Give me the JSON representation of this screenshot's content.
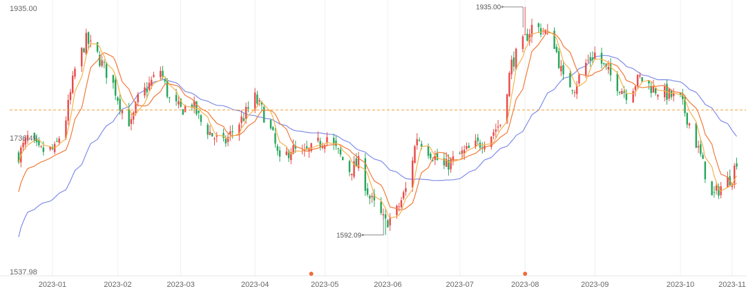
{
  "chart_data": {
    "type": "candlestick",
    "title": "",
    "y_labels": {
      "top": "1935.00",
      "bottom": "1537.98",
      "mid_partial": "1736.49"
    },
    "ylim": [
      1537.98,
      1935.0
    ],
    "xlim": [
      "2022-12-15",
      "2023-11-05"
    ],
    "x_ticks": [
      {
        "date": "2023-01-03",
        "label": "2023-01"
      },
      {
        "date": "2023-02-01",
        "label": "2023-02"
      },
      {
        "date": "2023-03-01",
        "label": "2023-03"
      },
      {
        "date": "2023-04-03",
        "label": "2023-04"
      },
      {
        "date": "2023-05-04",
        "label": "2023-05"
      },
      {
        "date": "2023-06-01",
        "label": "2023-06"
      },
      {
        "date": "2023-07-03",
        "label": "2023-07"
      },
      {
        "date": "2023-08-01",
        "label": "2023-08"
      },
      {
        "date": "2023-09-01",
        "label": "2023-09"
      },
      {
        "date": "2023-10-09",
        "label": "2023-10"
      },
      {
        "date": "2023-11-01",
        "label": "2023-11"
      }
    ],
    "current_price_line": 1780,
    "annotations": [
      {
        "text": "1935.00",
        "date": "2023-08-01",
        "value": 1935.0,
        "side": "left"
      },
      {
        "text": "1592.09",
        "date": "2023-05-31",
        "value": 1592.09,
        "side": "left"
      }
    ],
    "event_markers": [
      {
        "date": "2023-04-28"
      },
      {
        "date": "2023-08-01"
      }
    ],
    "colors": {
      "up": "#e84a4a",
      "down": "#26a65b",
      "ma_short": "#f5b14a",
      "ma_mid": "#f07a3a",
      "ma_long": "#7f8de8",
      "price_line": "#f0a040",
      "marker": "#f26a3a",
      "grid": "#f0f0f0"
    },
    "anchors": [
      [
        "2022-12-19",
        1712
      ],
      [
        "2022-12-23",
        1738
      ],
      [
        "2022-12-28",
        1718
      ],
      [
        "2023-01-04",
        1720
      ],
      [
        "2023-01-09",
        1768
      ],
      [
        "2023-01-13",
        1840
      ],
      [
        "2023-01-18",
        1885
      ],
      [
        "2023-01-23",
        1862
      ],
      [
        "2023-01-30",
        1818
      ],
      [
        "2023-02-03",
        1780
      ],
      [
        "2023-02-07",
        1758
      ],
      [
        "2023-02-10",
        1795
      ],
      [
        "2023-02-15",
        1818
      ],
      [
        "2023-02-20",
        1840
      ],
      [
        "2023-02-24",
        1795
      ],
      [
        "2023-03-01",
        1780
      ],
      [
        "2023-03-06",
        1790
      ],
      [
        "2023-03-10",
        1762
      ],
      [
        "2023-03-15",
        1742
      ],
      [
        "2023-03-20",
        1728
      ],
      [
        "2023-03-24",
        1748
      ],
      [
        "2023-03-29",
        1770
      ],
      [
        "2023-04-03",
        1798
      ],
      [
        "2023-04-06",
        1780
      ],
      [
        "2023-04-11",
        1740
      ],
      [
        "2023-04-14",
        1700
      ],
      [
        "2023-04-19",
        1722
      ],
      [
        "2023-04-24",
        1712
      ],
      [
        "2023-04-28",
        1720
      ],
      [
        "2023-05-05",
        1740
      ],
      [
        "2023-05-10",
        1715
      ],
      [
        "2023-05-15",
        1690
      ],
      [
        "2023-05-19",
        1700
      ],
      [
        "2023-05-24",
        1648
      ],
      [
        "2023-05-31",
        1610
      ],
      [
        "2023-06-05",
        1628
      ],
      [
        "2023-06-09",
        1660
      ],
      [
        "2023-06-14",
        1740
      ],
      [
        "2023-06-19",
        1720
      ],
      [
        "2023-06-26",
        1694
      ],
      [
        "2023-07-03",
        1712
      ],
      [
        "2023-07-07",
        1720
      ],
      [
        "2023-07-12",
        1730
      ],
      [
        "2023-07-17",
        1744
      ],
      [
        "2023-07-21",
        1760
      ],
      [
        "2023-07-26",
        1850
      ],
      [
        "2023-07-31",
        1880
      ],
      [
        "2023-08-04",
        1905
      ],
      [
        "2023-08-09",
        1900
      ],
      [
        "2023-08-14",
        1880
      ],
      [
        "2023-08-18",
        1825
      ],
      [
        "2023-08-23",
        1815
      ],
      [
        "2023-08-28",
        1850
      ],
      [
        "2023-09-01",
        1865
      ],
      [
        "2023-09-06",
        1840
      ],
      [
        "2023-09-11",
        1818
      ],
      [
        "2023-09-15",
        1805
      ],
      [
        "2023-09-21",
        1828
      ],
      [
        "2023-09-27",
        1812
      ],
      [
        "2023-10-09",
        1795
      ],
      [
        "2023-10-13",
        1760
      ],
      [
        "2023-10-18",
        1710
      ],
      [
        "2023-10-23",
        1648
      ],
      [
        "2023-10-27",
        1665
      ],
      [
        "2023-11-01",
        1680
      ],
      [
        "2023-11-03",
        1705
      ]
    ]
  }
}
